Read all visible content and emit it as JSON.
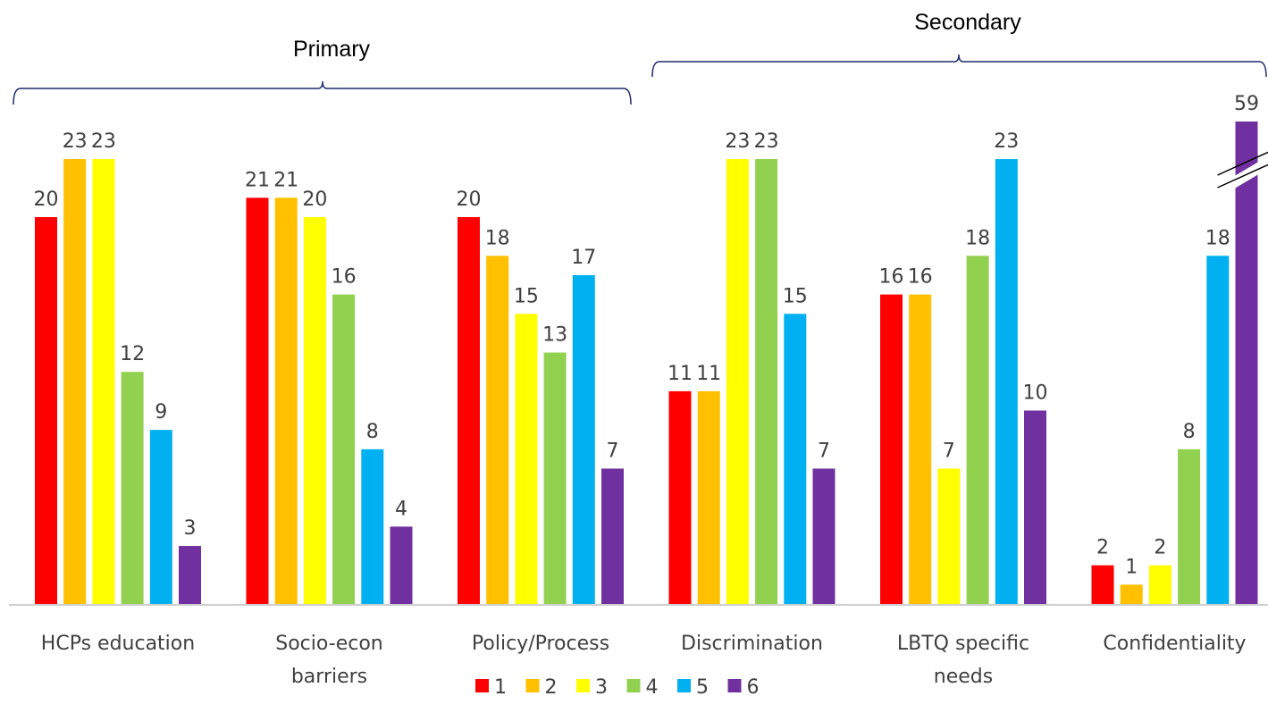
{
  "chart_data": {
    "type": "bar",
    "categories": [
      "HCPs education",
      "Socio-econ barriers",
      "Policy/Process",
      "Discrimination",
      "LBTQ specific needs",
      "Confidentiality"
    ],
    "category_lines": [
      [
        "HCPs education"
      ],
      [
        "Socio-econ",
        "barriers"
      ],
      [
        "Policy/Process"
      ],
      [
        "Discrimination"
      ],
      [
        "LBTQ specific",
        "needs"
      ],
      [
        "Confidentiality"
      ]
    ],
    "series": [
      {
        "name": "1",
        "color": "#FF0000",
        "values": [
          20,
          21,
          20,
          11,
          16,
          2
        ]
      },
      {
        "name": "2",
        "color": "#FFC000",
        "values": [
          23,
          21,
          18,
          11,
          16,
          1
        ]
      },
      {
        "name": "3",
        "color": "#FFFF00",
        "values": [
          23,
          20,
          15,
          23,
          7,
          2
        ]
      },
      {
        "name": "4",
        "color": "#92D050",
        "values": [
          12,
          16,
          13,
          23,
          18,
          8
        ]
      },
      {
        "name": "5",
        "color": "#00B0F0",
        "values": [
          9,
          8,
          17,
          15,
          23,
          18
        ]
      },
      {
        "name": "6",
        "color": "#7030A0",
        "values": [
          3,
          4,
          7,
          7,
          10,
          59
        ]
      }
    ],
    "ylim": [
      0,
      23
    ],
    "axis_break": true,
    "legend_position": "bottom",
    "groups": [
      {
        "label": "Primary",
        "from_category": 0,
        "to_category": 2
      },
      {
        "label": "Secondary",
        "from_category": 3,
        "to_category": 5
      }
    ]
  }
}
